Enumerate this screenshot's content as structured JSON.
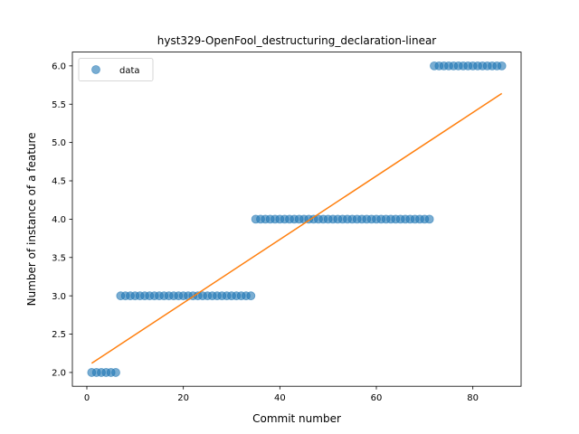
{
  "chart_data": {
    "type": "scatter",
    "title": "hyst329-OpenFool_destructuring_declaration-linear",
    "xlabel": "Commit number",
    "ylabel": "Number of instance of a feature",
    "xlim": [
      -3,
      90
    ],
    "ylim": [
      1.82,
      6.18
    ],
    "xticks": [
      0,
      20,
      40,
      60,
      80
    ],
    "yticks": [
      2.0,
      2.5,
      3.0,
      3.5,
      4.0,
      4.5,
      5.0,
      5.5,
      6.0
    ],
    "grid": false,
    "legend": {
      "placement": "top-left",
      "entries": [
        "data"
      ]
    },
    "series": [
      {
        "name": "data",
        "kind": "scatter",
        "color": "#1f77b4",
        "segments": [
          {
            "x_start": 1,
            "x_end": 6,
            "y": 2
          },
          {
            "x_start": 7,
            "x_end": 34,
            "y": 3
          },
          {
            "x_start": 35,
            "x_end": 71,
            "y": 4
          },
          {
            "x_start": 72,
            "x_end": 86,
            "y": 6
          }
        ]
      },
      {
        "kind": "line",
        "color": "#ff7f0e",
        "x": [
          1,
          86
        ],
        "y": [
          2.12,
          5.64
        ]
      }
    ]
  }
}
